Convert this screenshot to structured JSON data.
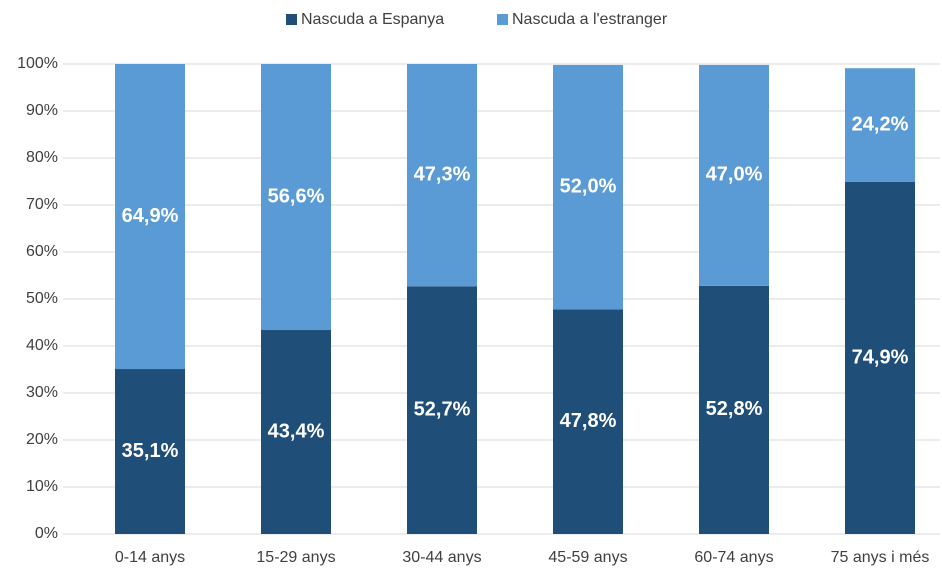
{
  "chart_data": {
    "type": "stacked_bar",
    "categories": [
      "0-14 anys",
      "15-29 anys",
      "30-44 anys",
      "45-59 anys",
      "60-74 anys",
      "75 anys i més"
    ],
    "series": [
      {
        "name": "Nascuda a Espanya",
        "color": "#1f4e79",
        "values": [
          35.1,
          43.4,
          52.7,
          47.8,
          52.8,
          74.9
        ],
        "value_labels": [
          "35,1%",
          "43,4%",
          "52,7%",
          "47,8%",
          "52,8%",
          "74,9%"
        ]
      },
      {
        "name": "Nascuda a l'estranger",
        "color": "#5b9bd5",
        "values": [
          64.9,
          56.6,
          47.3,
          52.0,
          47.0,
          24.2
        ],
        "value_labels": [
          "64,9%",
          "56,6%",
          "47,3%",
          "52,0%",
          "47,0%",
          "24,2%"
        ]
      }
    ],
    "ylim": [
      0,
      100
    ],
    "yticks": [
      {
        "value": 0,
        "label": "0%"
      },
      {
        "value": 10,
        "label": "10%"
      },
      {
        "value": 20,
        "label": "20%"
      },
      {
        "value": 30,
        "label": "30%"
      },
      {
        "value": 40,
        "label": "40%"
      },
      {
        "value": 50,
        "label": "50%"
      },
      {
        "value": 60,
        "label": "60%"
      },
      {
        "value": 70,
        "label": "70%"
      },
      {
        "value": 80,
        "label": "80%"
      },
      {
        "value": 90,
        "label": "90%"
      },
      {
        "value": 100,
        "label": "100%"
      }
    ],
    "grid": true,
    "legend": "top"
  }
}
